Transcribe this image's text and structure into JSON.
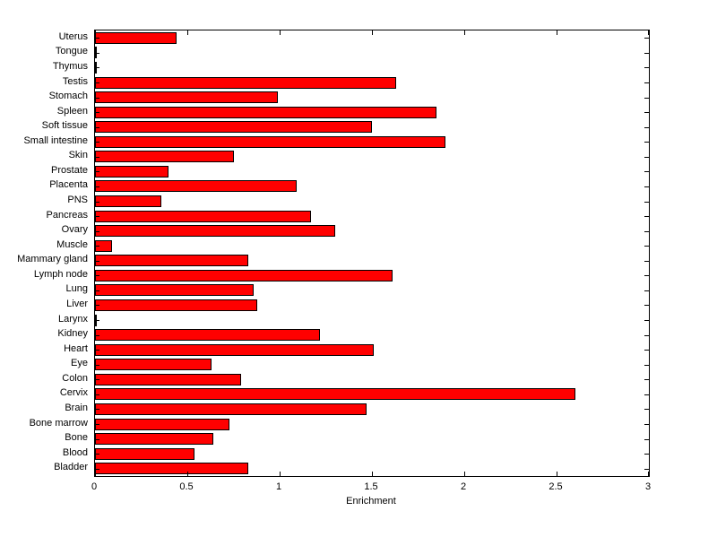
{
  "chart_data": {
    "type": "bar",
    "orientation": "horizontal",
    "title": "",
    "xlabel": "Enrichment",
    "ylabel": "",
    "xlim": [
      0,
      3
    ],
    "xticks": [
      0,
      0.5,
      1,
      1.5,
      2,
      2.5,
      3
    ],
    "xtick_labels": [
      "0",
      "0.5",
      "1",
      "1.5",
      "2",
      "2.5",
      "3"
    ],
    "grid": false,
    "legend": "none",
    "bar_color": "#ff0000",
    "bar_edge_color": "#000000",
    "categories_top_to_bottom": [
      "Uterus",
      "Tongue",
      "Thymus",
      "Testis",
      "Stomach",
      "Spleen",
      "Soft tissue",
      "Small intestine",
      "Skin",
      "Prostate",
      "Placenta",
      "PNS",
      "Pancreas",
      "Ovary",
      "Muscle",
      "Mammary gland",
      "Lymph node",
      "Lung",
      "Liver",
      "Larynx",
      "Kidney",
      "Heart",
      "Eye",
      "Colon",
      "Cervix",
      "Brain",
      "Bone marrow",
      "Bone",
      "Blood",
      "Bladder"
    ],
    "values": [
      0.44,
      0.01,
      0.01,
      1.63,
      0.99,
      1.85,
      1.5,
      1.9,
      0.75,
      0.4,
      1.09,
      0.36,
      1.17,
      1.3,
      0.09,
      0.83,
      1.61,
      0.86,
      0.88,
      0.01,
      1.22,
      1.51,
      0.63,
      0.79,
      2.6,
      1.47,
      0.73,
      0.64,
      0.54,
      0.83
    ]
  }
}
